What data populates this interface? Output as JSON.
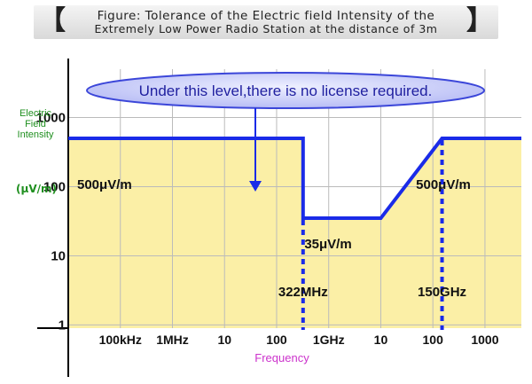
{
  "title": {
    "line1": "Figure: Tolerance of the Electric field Intensity of the",
    "line2": "Extremely Low Power Radio Station at the distance of 3m",
    "bracket_left": "【",
    "bracket_right": "】"
  },
  "colors": {
    "fill": "#fbefa6",
    "line": "#1a2be8",
    "grid": "#bbbbbb",
    "axis": "#000000",
    "ylabel": "#1f8f1f",
    "xlabel": "#cc33cc",
    "callout_fill": "#c9cdfa",
    "callout_stroke": "#3b46d9",
    "callout_text": "#2020a0"
  },
  "chart_data": {
    "type": "line",
    "xlabel": "Frequency",
    "ylabel": [
      "Electric",
      "Field",
      "Intensity"
    ],
    "yunit": "(μV/m)",
    "x_ticks": [
      "100kHz",
      "1MHz",
      "10",
      "100",
      "1GHz",
      "10",
      "100",
      "1000"
    ],
    "y_ticks": [
      "1000",
      "100",
      "10",
      "1"
    ],
    "x_scale": "log",
    "y_scale": "log",
    "xlim": [
      "10kHz",
      "5THz"
    ],
    "ylim": [
      0.9,
      5000
    ],
    "series": [
      {
        "x": [
          "10kHz",
          "322MHz",
          "322MHz",
          "10GHz",
          "150GHz",
          "5THz"
        ],
        "y": [
          500,
          500,
          35,
          35,
          500,
          500
        ]
      }
    ],
    "annotations": {
      "callout": "Under this level,there is no license required.",
      "level_left": "500μV/m",
      "level_mid": "35μV/m",
      "level_right": "500μV/m",
      "cutoff_low": "322MHz",
      "cutoff_high": "150GHz"
    },
    "grid": true,
    "fill_under": true
  }
}
